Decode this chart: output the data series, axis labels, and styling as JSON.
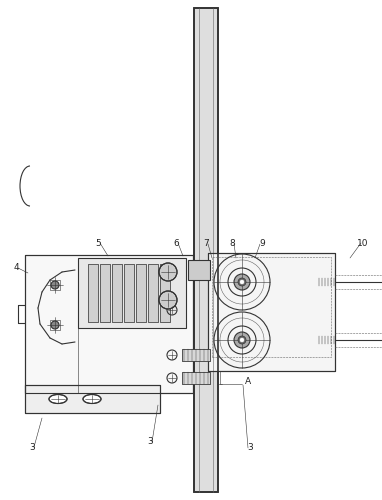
{
  "bg_color": "#ffffff",
  "line_color": "#666666",
  "dark_line": "#333333",
  "fig_width": 3.82,
  "fig_height": 5.0,
  "dpi": 100
}
